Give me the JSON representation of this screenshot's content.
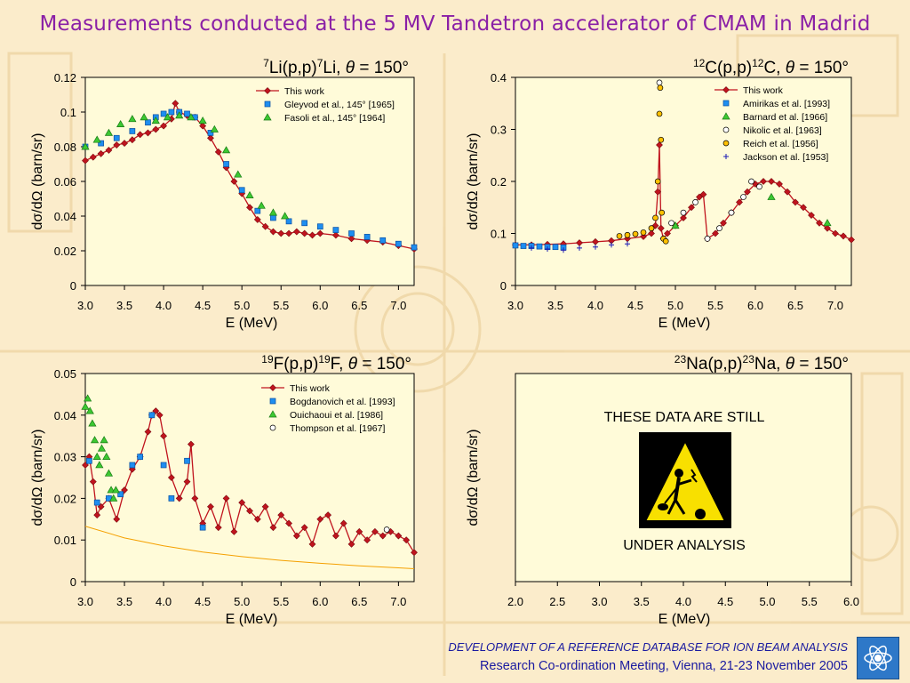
{
  "slide": {
    "title": "Measurements conducted at the 5 MV Tandetron accelerator of CMAM in Madrid",
    "footer_italic": "DEVELOPMENT OF A REFERENCE DATABASE FOR ION BEAM ANALYSIS",
    "footer_meeting": "Research Co-ordination Meeting, Vienna, 21-23 November 2005",
    "logo_icon": "iaea-logo-icon",
    "title_color": "#8a1fa6",
    "footer_color": "#1a1aa0"
  },
  "chart_data": [
    {
      "type": "scatter",
      "title": "7Li(p,p)7Li, θ = 150°",
      "xlabel": "E (MeV)",
      "ylabel": "dσ/dΩ (barn/sr)",
      "xlim": [
        3.0,
        7.2
      ],
      "ylim": [
        0,
        0.12
      ],
      "xticks": [
        "3.0",
        "3.5",
        "4.0",
        "4.5",
        "5.0",
        "5.5",
        "6.0",
        "6.5",
        "7.0"
      ],
      "yticks": [
        "0",
        "0.02",
        "0.04",
        "0.06",
        "0.08",
        "0.1",
        "0.12"
      ],
      "xtick_values": [
        3.0,
        3.5,
        4.0,
        4.5,
        5.0,
        5.5,
        6.0,
        6.5,
        7.0
      ],
      "ytick_values": [
        0,
        0.02,
        0.04,
        0.06,
        0.08,
        0.1,
        0.12
      ],
      "legend_position": "top-right",
      "series": [
        {
          "name": "This work",
          "marker": "diamond-line",
          "color": "#c0141e",
          "x": [
            3.0,
            3.1,
            3.2,
            3.3,
            3.4,
            3.5,
            3.6,
            3.7,
            3.8,
            3.9,
            4.0,
            4.1,
            4.15,
            4.2,
            4.3,
            4.4,
            4.5,
            4.6,
            4.7,
            4.8,
            4.9,
            5.0,
            5.1,
            5.2,
            5.3,
            5.4,
            5.5,
            5.6,
            5.7,
            5.8,
            5.9,
            6.0,
            6.2,
            6.4,
            6.6,
            6.8,
            7.0,
            7.2
          ],
          "y": [
            0.072,
            0.074,
            0.076,
            0.078,
            0.081,
            0.082,
            0.084,
            0.087,
            0.088,
            0.09,
            0.092,
            0.096,
            0.105,
            0.1,
            0.098,
            0.097,
            0.092,
            0.085,
            0.077,
            0.068,
            0.06,
            0.053,
            0.045,
            0.038,
            0.034,
            0.031,
            0.03,
            0.03,
            0.031,
            0.03,
            0.029,
            0.03,
            0.029,
            0.027,
            0.026,
            0.025,
            0.023,
            0.021
          ]
        },
        {
          "name": "Gleyvod et al., 145° [1965]",
          "marker": "square",
          "color": "#1e8ef0",
          "x": [
            3.0,
            3.2,
            3.4,
            3.6,
            3.8,
            3.9,
            4.0,
            4.1,
            4.2,
            4.3,
            4.4,
            4.6,
            4.8,
            5.0,
            5.2,
            5.4,
            5.6,
            5.8,
            6.0,
            6.2,
            6.4,
            6.6,
            6.8,
            7.0,
            7.2
          ],
          "y": [
            0.08,
            0.082,
            0.085,
            0.089,
            0.094,
            0.097,
            0.099,
            0.1,
            0.1,
            0.099,
            0.097,
            0.088,
            0.07,
            0.055,
            0.043,
            0.039,
            0.037,
            0.036,
            0.034,
            0.032,
            0.03,
            0.028,
            0.026,
            0.024,
            0.022
          ]
        },
        {
          "name": "Fasoli et al., 145° [1964]",
          "marker": "triangle",
          "color": "#3cc832",
          "x": [
            3.0,
            3.15,
            3.3,
            3.45,
            3.6,
            3.75,
            3.9,
            4.05,
            4.2,
            4.35,
            4.5,
            4.65,
            4.8,
            4.95,
            5.1,
            5.25,
            5.4,
            5.55
          ],
          "y": [
            0.08,
            0.084,
            0.088,
            0.093,
            0.096,
            0.097,
            0.095,
            0.097,
            0.098,
            0.097,
            0.095,
            0.09,
            0.078,
            0.064,
            0.052,
            0.046,
            0.042,
            0.04
          ]
        }
      ]
    },
    {
      "type": "scatter",
      "title": "12C(p,p)12C, θ = 150°",
      "xlabel": "E (MeV)",
      "ylabel": "dσ/dΩ (barn/sr)",
      "xlim": [
        3.0,
        7.2
      ],
      "ylim": [
        0,
        0.4
      ],
      "xticks": [
        "3.0",
        "3.5",
        "4.0",
        "4.5",
        "5.0",
        "5.5",
        "6.0",
        "6.5",
        "7.0"
      ],
      "yticks": [
        "0",
        "0.1",
        "0.2",
        "0.3",
        "0.4"
      ],
      "xtick_values": [
        3.0,
        3.5,
        4.0,
        4.5,
        5.0,
        5.5,
        6.0,
        6.5,
        7.0
      ],
      "ytick_values": [
        0,
        0.1,
        0.2,
        0.3,
        0.4
      ],
      "legend_position": "top-right",
      "series": [
        {
          "name": "This work",
          "marker": "diamond-line",
          "color": "#c0141e",
          "x": [
            3.0,
            3.2,
            3.4,
            3.6,
            3.8,
            4.0,
            4.2,
            4.4,
            4.6,
            4.7,
            4.75,
            4.78,
            4.8,
            4.82,
            4.85,
            4.9,
            5.0,
            5.1,
            5.2,
            5.3,
            5.35,
            5.4,
            5.5,
            5.6,
            5.7,
            5.8,
            5.9,
            6.0,
            6.1,
            6.2,
            6.3,
            6.4,
            6.5,
            6.6,
            6.7,
            6.8,
            6.9,
            7.0,
            7.1,
            7.2
          ],
          "y": [
            0.078,
            0.078,
            0.079,
            0.08,
            0.082,
            0.084,
            0.086,
            0.09,
            0.094,
            0.1,
            0.115,
            0.18,
            0.27,
            0.11,
            0.09,
            0.1,
            0.115,
            0.13,
            0.15,
            0.17,
            0.175,
            0.09,
            0.1,
            0.12,
            0.14,
            0.16,
            0.18,
            0.195,
            0.2,
            0.2,
            0.195,
            0.18,
            0.16,
            0.15,
            0.135,
            0.12,
            0.11,
            0.1,
            0.095,
            0.088
          ]
        },
        {
          "name": "Amirikas et al. [1993]",
          "marker": "square",
          "color": "#1e8ef0",
          "x": [
            3.0,
            3.1,
            3.2,
            3.3,
            3.4,
            3.5,
            3.6
          ],
          "y": [
            0.077,
            0.076,
            0.076,
            0.075,
            0.074,
            0.074,
            0.073
          ]
        },
        {
          "name": "Barnard et al. [1966]",
          "marker": "triangle",
          "color": "#3cc832",
          "x": [
            5.0,
            6.2,
            6.9
          ],
          "y": [
            0.115,
            0.17,
            0.12
          ]
        },
        {
          "name": "Nikolic et al. [1963]",
          "marker": "circle",
          "color": "#ffffff",
          "x": [
            4.8,
            4.95,
            5.1,
            5.25,
            5.4,
            5.55,
            5.7,
            5.85,
            5.95,
            6.05
          ],
          "y": [
            0.39,
            0.12,
            0.14,
            0.16,
            0.09,
            0.11,
            0.14,
            0.17,
            0.2,
            0.19
          ]
        },
        {
          "name": "Reich et al. [1956]",
          "marker": "circle",
          "color": "#ffc000",
          "x": [
            4.3,
            4.4,
            4.5,
            4.6,
            4.7,
            4.75,
            4.78,
            4.8,
            4.81,
            4.82,
            4.83,
            4.85,
            4.88
          ],
          "y": [
            0.095,
            0.097,
            0.099,
            0.102,
            0.11,
            0.13,
            0.2,
            0.33,
            0.38,
            0.28,
            0.14,
            0.09,
            0.085
          ]
        },
        {
          "name": "Jackson et al. [1953]",
          "marker": "plus",
          "color": "#1a1ab4",
          "x": [
            3.2,
            3.4,
            3.6,
            3.8,
            4.0,
            4.2,
            4.4
          ],
          "y": [
            0.072,
            0.07,
            0.068,
            0.072,
            0.074,
            0.078,
            0.08
          ]
        }
      ]
    },
    {
      "type": "scatter",
      "title": "19F(p,p)19F, θ = 150°",
      "xlabel": "E (MeV)",
      "ylabel": "dσ/dΩ (barn/sr)",
      "xlim": [
        3.0,
        7.2
      ],
      "ylim": [
        0,
        0.05
      ],
      "xticks": [
        "3.0",
        "3.5",
        "4.0",
        "4.5",
        "5.0",
        "5.5",
        "6.0",
        "6.5",
        "7.0"
      ],
      "yticks": [
        "0",
        "0.01",
        "0.02",
        "0.03",
        "0.04",
        "0.05"
      ],
      "xtick_values": [
        3.0,
        3.5,
        4.0,
        4.5,
        5.0,
        5.5,
        6.0,
        6.5,
        7.0
      ],
      "ytick_values": [
        0,
        0.01,
        0.02,
        0.03,
        0.04,
        0.05
      ],
      "legend_position": "top-right",
      "series": [
        {
          "name": "This work",
          "marker": "diamond-line",
          "color": "#c0141e",
          "x": [
            3.0,
            3.05,
            3.1,
            3.15,
            3.2,
            3.3,
            3.4,
            3.5,
            3.6,
            3.7,
            3.8,
            3.85,
            3.9,
            3.95,
            4.0,
            4.1,
            4.2,
            4.3,
            4.35,
            4.4,
            4.5,
            4.6,
            4.7,
            4.8,
            4.9,
            5.0,
            5.1,
            5.2,
            5.3,
            5.4,
            5.5,
            5.6,
            5.7,
            5.8,
            5.9,
            6.0,
            6.1,
            6.2,
            6.3,
            6.4,
            6.5,
            6.6,
            6.7,
            6.8,
            6.9,
            7.0,
            7.1,
            7.2
          ],
          "y": [
            0.028,
            0.03,
            0.024,
            0.016,
            0.018,
            0.02,
            0.015,
            0.022,
            0.027,
            0.03,
            0.036,
            0.04,
            0.041,
            0.04,
            0.035,
            0.025,
            0.02,
            0.024,
            0.033,
            0.02,
            0.014,
            0.018,
            0.013,
            0.02,
            0.012,
            0.019,
            0.017,
            0.015,
            0.018,
            0.013,
            0.016,
            0.014,
            0.011,
            0.013,
            0.009,
            0.015,
            0.016,
            0.011,
            0.014,
            0.009,
            0.012,
            0.01,
            0.012,
            0.011,
            0.012,
            0.011,
            0.01,
            0.007
          ]
        },
        {
          "name": "Bogdanovich et al. [1993]",
          "marker": "square",
          "color": "#1e8ef0",
          "x": [
            3.05,
            3.15,
            3.3,
            3.45,
            3.6,
            3.7,
            3.85,
            4.0,
            4.1,
            4.3,
            4.5
          ],
          "y": [
            0.029,
            0.019,
            0.02,
            0.021,
            0.028,
            0.03,
            0.04,
            0.028,
            0.02,
            0.029,
            0.013
          ]
        },
        {
          "name": "Ouichaoui et al. [1986]",
          "marker": "triangle",
          "color": "#3cc832",
          "x": [
            3.0,
            3.03,
            3.06,
            3.09,
            3.12,
            3.15,
            3.18,
            3.21,
            3.24,
            3.27,
            3.3,
            3.33,
            3.36,
            3.39
          ],
          "y": [
            0.042,
            0.044,
            0.041,
            0.038,
            0.034,
            0.03,
            0.028,
            0.032,
            0.034,
            0.03,
            0.026,
            0.022,
            0.02,
            0.022
          ]
        },
        {
          "name": "Thompson et al. [1967]",
          "marker": "circle",
          "color": "#ffffff",
          "x": [
            6.85
          ],
          "y": [
            0.0125
          ]
        },
        {
          "name": "",
          "marker": "none",
          "color": "#f5a000",
          "x": [
            3.0,
            3.5,
            4.0,
            4.5,
            5.0,
            5.5,
            6.0,
            6.5,
            7.0,
            7.2
          ],
          "y": [
            0.0133,
            0.0105,
            0.0086,
            0.0071,
            0.006,
            0.0051,
            0.0044,
            0.0038,
            0.0033,
            0.0031
          ]
        }
      ]
    },
    {
      "type": "scatter",
      "title": "23Na(p,p)23Na, θ = 150°",
      "xlabel": "E (MeV)",
      "ylabel": "dσ/dΩ (barn/sr)",
      "xlim": [
        2.0,
        6.0
      ],
      "xticks": [
        "2.0",
        "2.5",
        "3.0",
        "3.5",
        "4.0",
        "4.5",
        "5.0",
        "5.5",
        "6.0"
      ],
      "xtick_values": [
        2.0,
        2.5,
        3.0,
        3.5,
        4.0,
        4.5,
        5.0,
        5.5,
        6.0
      ],
      "notice_top": "THESE DATA ARE STILL",
      "notice_bottom": "UNDER ANALYSIS",
      "notice_icon": "worker-digging-warning-icon",
      "series": []
    }
  ]
}
